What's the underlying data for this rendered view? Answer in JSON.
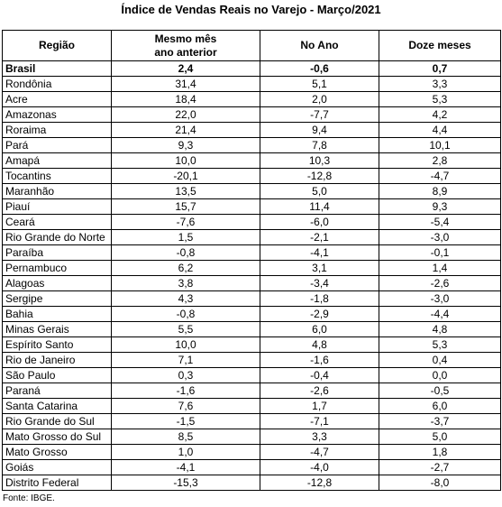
{
  "title": "Índice de Vendas Reais no Varejo - Março/2021",
  "table": {
    "header": [
      "Região",
      "Mesmo mês\nano anterior",
      "No Ano",
      "Doze meses"
    ],
    "rows": [
      [
        "Brasil",
        "2,4",
        "-0,6",
        "0,7"
      ],
      [
        "Rondônia",
        "31,4",
        "5,1",
        "3,3"
      ],
      [
        "Acre",
        "18,4",
        "2,0",
        "5,3"
      ],
      [
        "Amazonas",
        "22,0",
        "-7,7",
        "4,2"
      ],
      [
        "Roraima",
        "21,4",
        "9,4",
        "4,4"
      ],
      [
        "Pará",
        "9,3",
        "7,8",
        "10,1"
      ],
      [
        "Amapá",
        "10,0",
        "10,3",
        "2,8"
      ],
      [
        "Tocantins",
        "-20,1",
        "-12,8",
        "-4,7"
      ],
      [
        "Maranhão",
        "13,5",
        "5,0",
        "8,9"
      ],
      [
        "Piauí",
        "15,7",
        "11,4",
        "9,3"
      ],
      [
        "Ceará",
        "-7,6",
        "-6,0",
        "-5,4"
      ],
      [
        "Rio Grande do Norte",
        "1,5",
        "-2,1",
        "-3,0"
      ],
      [
        "Paraíba",
        "-0,8",
        "-4,1",
        "-0,1"
      ],
      [
        "Pernambuco",
        "6,2",
        "3,1",
        "1,4"
      ],
      [
        "Alagoas",
        "3,8",
        "-3,4",
        "-2,6"
      ],
      [
        "Sergipe",
        "4,3",
        "-1,8",
        "-3,0"
      ],
      [
        "Bahia",
        "-0,8",
        "-2,9",
        "-4,4"
      ],
      [
        "Minas Gerais",
        "5,5",
        "6,0",
        "4,8"
      ],
      [
        "Espírito Santo",
        "10,0",
        "4,8",
        "5,3"
      ],
      [
        "Rio de Janeiro",
        "7,1",
        "-1,6",
        "0,4"
      ],
      [
        "São Paulo",
        "0,3",
        "-0,4",
        "0,0"
      ],
      [
        "Paraná",
        "-1,6",
        "-2,6",
        "-0,5"
      ],
      [
        "Santa Catarina",
        "7,6",
        "1,7",
        "6,0"
      ],
      [
        "Rio Grande do Sul",
        "-1,5",
        "-7,1",
        "-3,7"
      ],
      [
        "Mato Grosso do Sul",
        "8,5",
        "3,3",
        "5,0"
      ],
      [
        "Mato Grosso",
        "1,0",
        "-4,7",
        "1,8"
      ],
      [
        "Goiás",
        "-4,1",
        "-4,0",
        "-2,7"
      ],
      [
        "Distrito Federal",
        "-15,3",
        "-12,8",
        "-8,0"
      ]
    ]
  },
  "source": "Fonte: IBGE."
}
